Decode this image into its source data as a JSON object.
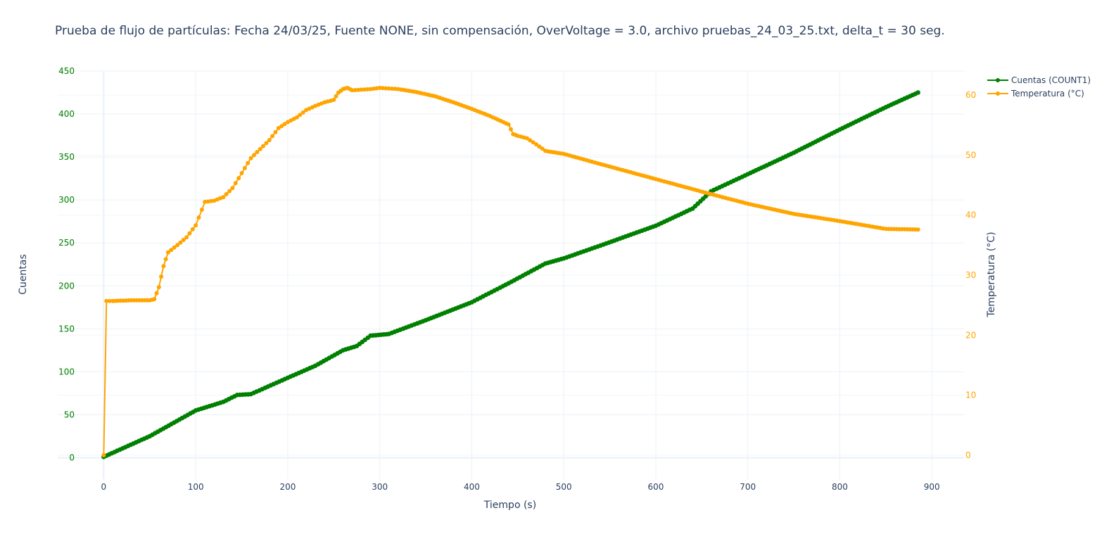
{
  "chart_data": {
    "type": "line",
    "title": "Prueba de flujo de partículas: Fecha 24/03/25, Fuente NONE, sin compensación, OverVoltage = 3.0, archivo pruebas_24_03_25.txt, delta_t = 30 seg.",
    "xlabel": "Tiempo (s)",
    "ylabel": "Cuentas",
    "ylabel_right": "Temperatura (°C)",
    "xlim": [
      -50,
      935
    ],
    "ylim": [
      -25,
      450
    ],
    "ylim_right": [
      -4,
      64
    ],
    "x_ticks": [
      "0",
      "100",
      "200",
      "300",
      "400",
      "500",
      "600",
      "700",
      "800",
      "900"
    ],
    "y_ticks": [
      "0",
      "50",
      "100",
      "150",
      "200",
      "250",
      "300",
      "350",
      "400",
      "450"
    ],
    "y_ticks_right": [
      "0",
      "10",
      "20",
      "30",
      "40",
      "50",
      "60"
    ],
    "grid": true,
    "legend_position": "top-right",
    "series": [
      {
        "name": "Cuentas (COUNT1)",
        "axis": "left",
        "color": "#008000",
        "x": [
          0,
          50,
          100,
          130,
          145,
          160,
          200,
          230,
          260,
          275,
          290,
          310,
          350,
          400,
          440,
          480,
          500,
          540,
          600,
          640,
          660,
          700,
          750,
          800,
          850,
          885
        ],
        "y": [
          1,
          25,
          55,
          65,
          73,
          74,
          93,
          107,
          125,
          130,
          142,
          144,
          160,
          181,
          203,
          226,
          232,
          247,
          270,
          290,
          310,
          330,
          355,
          382,
          408,
          425
        ]
      },
      {
        "name": "Temperatura (°C)",
        "axis": "right",
        "color": "#ffa500",
        "x": [
          0,
          3,
          10,
          30,
          50,
          55,
          60,
          65,
          70,
          80,
          90,
          100,
          110,
          120,
          130,
          140,
          150,
          160,
          170,
          180,
          190,
          200,
          210,
          220,
          230,
          240,
          250,
          255,
          260,
          265,
          270,
          280,
          290,
          300,
          310,
          320,
          340,
          360,
          380,
          400,
          420,
          440,
          445,
          450,
          460,
          470,
          480,
          500,
          540,
          600,
          660,
          700,
          750,
          800,
          850,
          885
        ],
        "y": [
          0,
          25.7,
          25.7,
          25.8,
          25.8,
          26,
          28,
          31.5,
          33.8,
          35,
          36.3,
          38.3,
          42.2,
          42.4,
          43,
          44.5,
          47,
          49.5,
          51,
          52.5,
          54.5,
          55.5,
          56.3,
          57.5,
          58.2,
          58.8,
          59.2,
          60.4,
          61,
          61.2,
          60.8,
          60.9,
          61,
          61.2,
          61.1,
          61,
          60.5,
          59.8,
          58.8,
          57.7,
          56.5,
          55.1,
          53.5,
          53.2,
          52.8,
          51.8,
          50.7,
          50.2,
          48.5,
          46,
          43.5,
          41.9,
          40.2,
          39,
          37.7,
          37.6
        ]
      }
    ]
  }
}
